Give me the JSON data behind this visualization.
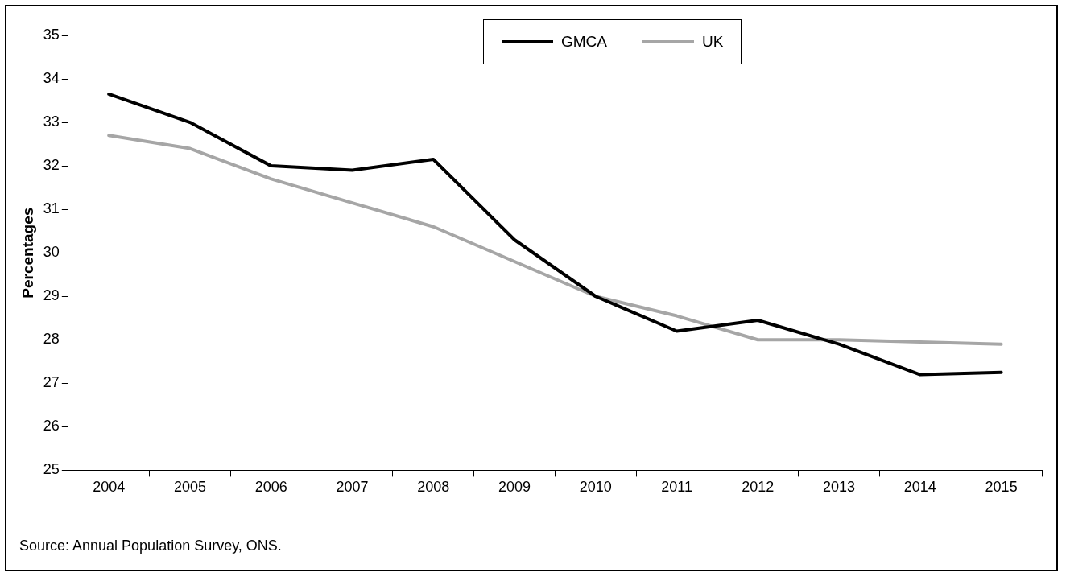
{
  "chart_data": {
    "type": "line",
    "ylabel": "Percentages",
    "categories": [
      "2004",
      "2005",
      "2006",
      "2007",
      "2008",
      "2009",
      "2010",
      "2011",
      "2012",
      "2013",
      "2014",
      "2015"
    ],
    "series": [
      {
        "name": "GMCA",
        "color": "#000000",
        "values": [
          33.65,
          33.0,
          32.0,
          31.9,
          32.15,
          30.3,
          29.0,
          28.2,
          28.45,
          27.9,
          27.2,
          27.25
        ]
      },
      {
        "name": "UK",
        "color": "#a6a6a6",
        "values": [
          32.7,
          32.4,
          31.7,
          31.15,
          30.6,
          29.8,
          29.0,
          28.55,
          28.0,
          28.0,
          27.95,
          27.9
        ]
      }
    ],
    "ylim": [
      25,
      35
    ],
    "yticks": [
      25,
      26,
      27,
      28,
      29,
      30,
      31,
      32,
      33,
      34,
      35
    ],
    "grid": false,
    "legend": "top",
    "marker": "none",
    "line_style": "solid",
    "annotations": [
      "Source: Annual Population Survey, ONS."
    ]
  }
}
